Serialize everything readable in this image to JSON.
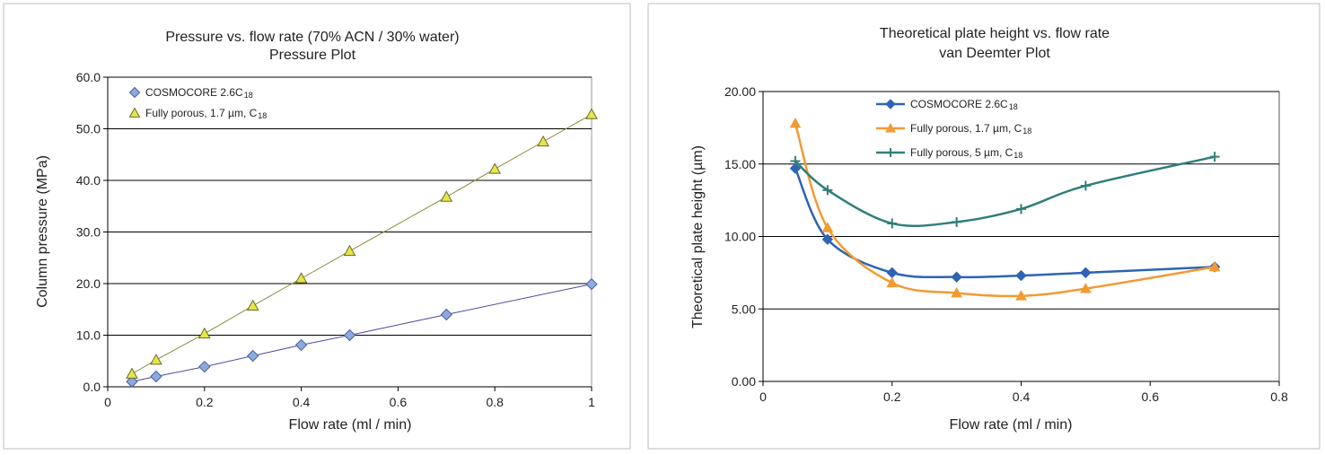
{
  "chart_data": [
    {
      "type": "line",
      "title": "Pressure vs. flow rate (70% ACN / 30% water)",
      "subtitle": "Pressure Plot",
      "xlabel": "Flow rate (ml / min)",
      "ylabel": "Column pressure (MPa)",
      "xlim": [
        0,
        1
      ],
      "ylim": [
        0,
        60
      ],
      "xticks": [
        0,
        0.2,
        0.4,
        0.6,
        0.8,
        1
      ],
      "xtick_labels": [
        "0",
        "0.2",
        "0.4",
        "0.6",
        "0.8",
        "1"
      ],
      "yticks": [
        0,
        10,
        20,
        30,
        40,
        50,
        60
      ],
      "ytick_labels": [
        "0.0",
        "10.0",
        "20.0",
        "30.0",
        "40.0",
        "50.0",
        "60.0"
      ],
      "grid": "horizontal",
      "legend_position": "top-left",
      "series": [
        {
          "name": "COSMOCORE 2.6C",
          "name_sub": "18",
          "marker": "diamond",
          "color": "#8eaadb",
          "line_color": "#4b4b9e",
          "x": [
            0.05,
            0.1,
            0.2,
            0.3,
            0.4,
            0.5,
            0.7,
            1.0
          ],
          "y": [
            1.0,
            2.0,
            3.9,
            6.0,
            8.1,
            10.0,
            14.0,
            19.9
          ]
        },
        {
          "name": "Fully porous, 1.7 µm, C",
          "name_sub": "18",
          "marker": "triangle",
          "color": "#e5e64a",
          "line_color": "#8a8a3a",
          "x": [
            0.05,
            0.1,
            0.2,
            0.3,
            0.4,
            0.5,
            0.7,
            0.8,
            0.9,
            1.0
          ],
          "y": [
            2.5,
            5.2,
            10.3,
            15.7,
            21.0,
            26.3,
            36.8,
            42.2,
            47.5,
            52.8
          ]
        }
      ]
    },
    {
      "type": "line",
      "title": "Theoretical plate height vs. flow rate",
      "subtitle": "van Deemter Plot",
      "xlabel": "Flow rate (ml / min)",
      "ylabel": "Theoretical plate height  (µm)",
      "xlim": [
        0,
        0.8
      ],
      "ylim": [
        0,
        20
      ],
      "xticks": [
        0,
        0.2,
        0.4,
        0.6,
        0.8
      ],
      "xtick_labels": [
        "0",
        "0.2",
        "0.4",
        "0.6",
        "0.8"
      ],
      "yticks": [
        0,
        5,
        10,
        15,
        20
      ],
      "ytick_labels": [
        "0.00",
        "5.00",
        "10.00",
        "15.00",
        "20.00"
      ],
      "grid": "horizontal",
      "legend_position": "top-left",
      "series": [
        {
          "name": "COSMOCORE 2.6C",
          "name_sub": "18",
          "marker": "diamond",
          "color": "#2e64b3",
          "x": [
            0.05,
            0.1,
            0.2,
            0.3,
            0.4,
            0.5,
            0.7
          ],
          "y": [
            14.7,
            9.8,
            7.5,
            7.2,
            7.3,
            7.5,
            7.9
          ]
        },
        {
          "name": "Fully porous, 1.7 µm, C",
          "name_sub": "18",
          "marker": "triangle",
          "color": "#f39a33",
          "x": [
            0.05,
            0.1,
            0.2,
            0.3,
            0.4,
            0.5,
            0.7
          ],
          "y": [
            17.8,
            10.6,
            6.8,
            6.1,
            5.9,
            6.4,
            7.9
          ]
        },
        {
          "name": "Fully porous, 5 µm, C",
          "name_sub": "18",
          "marker": "plus",
          "color": "#2f7f7a",
          "x": [
            0.05,
            0.1,
            0.2,
            0.3,
            0.4,
            0.5,
            0.7
          ],
          "y": [
            15.2,
            13.2,
            10.9,
            11.0,
            11.9,
            13.5,
            15.5
          ]
        }
      ]
    }
  ]
}
